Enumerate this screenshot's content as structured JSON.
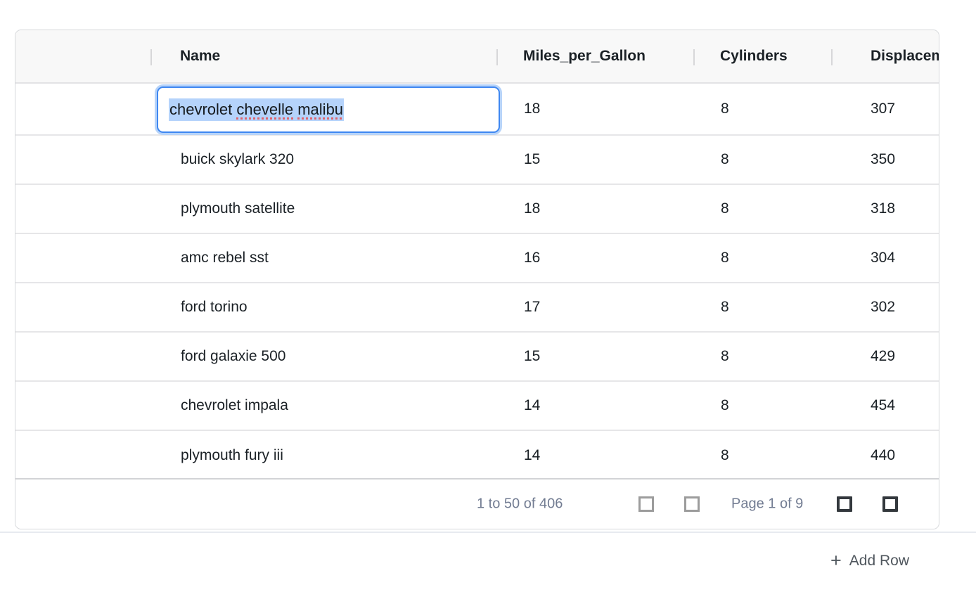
{
  "grid": {
    "columns": [
      {
        "label": ""
      },
      {
        "label": "Name"
      },
      {
        "label": "Miles_per_Gallon"
      },
      {
        "label": "Cylinders"
      },
      {
        "label": "Displacement"
      }
    ],
    "rows": [
      {
        "name": "chevrolet chevelle malibu",
        "mpg": "18",
        "cylinders": "8",
        "displacement": "307"
      },
      {
        "name": "buick skylark 320",
        "mpg": "15",
        "cylinders": "8",
        "displacement": "350"
      },
      {
        "name": "plymouth satellite",
        "mpg": "18",
        "cylinders": "8",
        "displacement": "318"
      },
      {
        "name": "amc rebel sst",
        "mpg": "16",
        "cylinders": "8",
        "displacement": "304"
      },
      {
        "name": "ford torino",
        "mpg": "17",
        "cylinders": "8",
        "displacement": "302"
      },
      {
        "name": "ford galaxie 500",
        "mpg": "15",
        "cylinders": "8",
        "displacement": "429"
      },
      {
        "name": "chevrolet impala",
        "mpg": "14",
        "cylinders": "8",
        "displacement": "454"
      },
      {
        "name": "plymouth fury iii",
        "mpg": "14",
        "cylinders": "8",
        "displacement": "440"
      }
    ],
    "editor": {
      "value": "chevrolet chevelle malibu",
      "segments": [
        {
          "text": "chevrolet ",
          "misspelled": false
        },
        {
          "text": "chevelle",
          "misspelled": true
        },
        {
          "text": " ",
          "misspelled": false
        },
        {
          "text": "malibu",
          "misspelled": true
        }
      ]
    },
    "footer": {
      "range_label": "1 to 50 of 406",
      "page_label": "Page 1 of 9"
    }
  },
  "add_row": {
    "icon": "+",
    "label": "Add Row"
  },
  "colors": {
    "accent_blue": "#3e87f1",
    "selection_blue": "#b5d3fb",
    "spellcheck_red": "#e0646c",
    "header_bg": "#f8f8f8",
    "pagination_text": "#727c92",
    "disabled_icon_gray": "#9c9c9c",
    "enabled_icon_dark": "#33383d"
  }
}
